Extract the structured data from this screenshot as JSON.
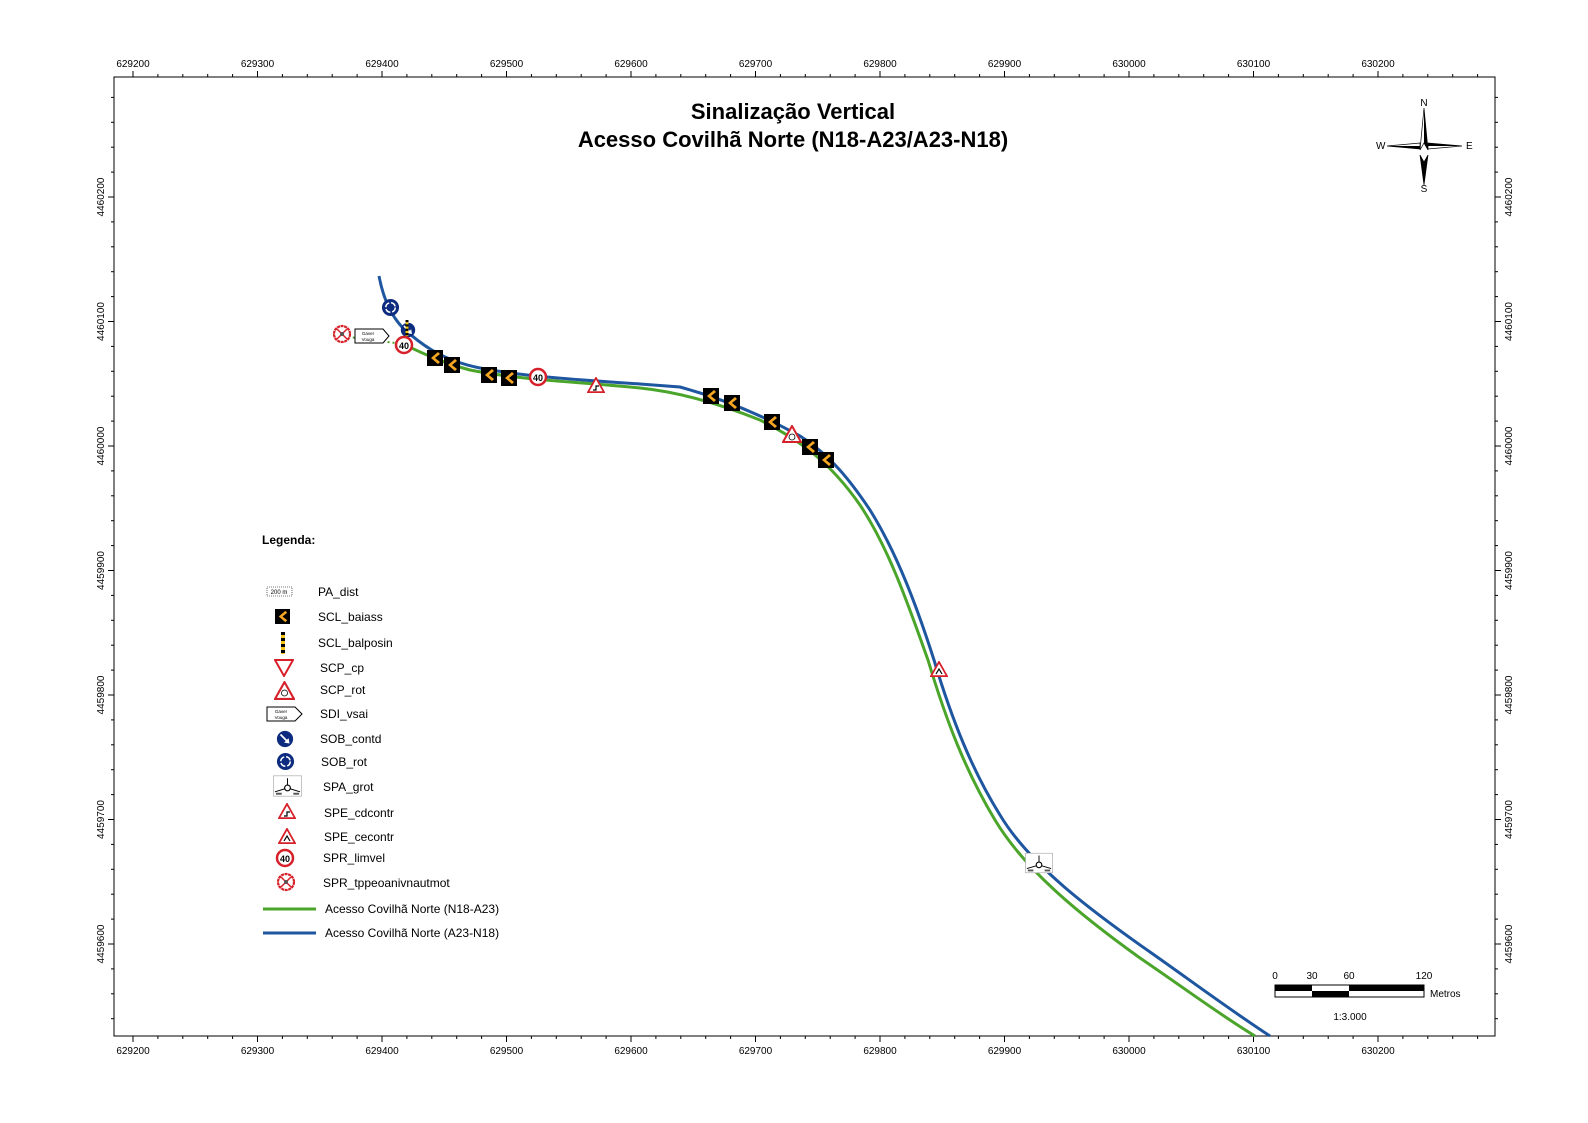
{
  "title": {
    "line1": "Sinalização Vertical",
    "line2": "Acesso Covilhã Norte (N18-A23/A23-N18)"
  },
  "axes": {
    "x_ticks": [
      "629200",
      "629300",
      "629400",
      "629500",
      "629600",
      "629700",
      "629800",
      "629900",
      "630000",
      "630100",
      "630200"
    ],
    "y_ticks": [
      "4460200",
      "4460100",
      "4460000",
      "4459900",
      "4459800",
      "4459700",
      "4459600"
    ]
  },
  "north_arrow": {
    "n": "N",
    "s": "S",
    "e": "E",
    "w": "W"
  },
  "legend": {
    "heading": "Legenda:",
    "items": [
      {
        "label": "PA_dist",
        "icon": "pa-dist-icon"
      },
      {
        "label": "SCL_baiass",
        "icon": "chevron-sign-icon"
      },
      {
        "label": "SCL_balposin",
        "icon": "striped-post-icon"
      },
      {
        "label": "SCP_cp",
        "icon": "yield-sign-icon"
      },
      {
        "label": "SCP_rot",
        "icon": "roundabout-warning-icon"
      },
      {
        "label": "SDI_vsai",
        "icon": "direction-sign-icon"
      },
      {
        "label": "SOB_contd",
        "icon": "keep-right-sign-icon"
      },
      {
        "label": "SOB_rot",
        "icon": "roundabout-mandatory-icon"
      },
      {
        "label": "SPA_grot",
        "icon": "roundabout-diagram-icon"
      },
      {
        "label": "SPE_cdcontr",
        "icon": "curve-right-warning-icon"
      },
      {
        "label": "SPE_cecontr",
        "icon": "curve-left-warning-icon"
      },
      {
        "label": "SPR_limvel",
        "icon": "speed-limit-icon"
      },
      {
        "label": "SPR_tppeoanivnautmot",
        "icon": "no-entry-vehicles-icon"
      }
    ],
    "routes": [
      {
        "label": "Acesso Covilhã Norte (N18-A23)",
        "color": "#4aa52a"
      },
      {
        "label": "Acesso Covilhã Norte (A23-N18)",
        "color": "#1e56a0"
      }
    ]
  },
  "sign_text": {
    "speed_limit": "40",
    "direction_line1": "Gaver",
    "direction_line2": "Vouga",
    "pa_dist": "200 m"
  },
  "scale_bar": {
    "ticks": [
      "0",
      "30",
      "60",
      "120"
    ],
    "unit": "Metros",
    "ratio": "1:3.000"
  }
}
